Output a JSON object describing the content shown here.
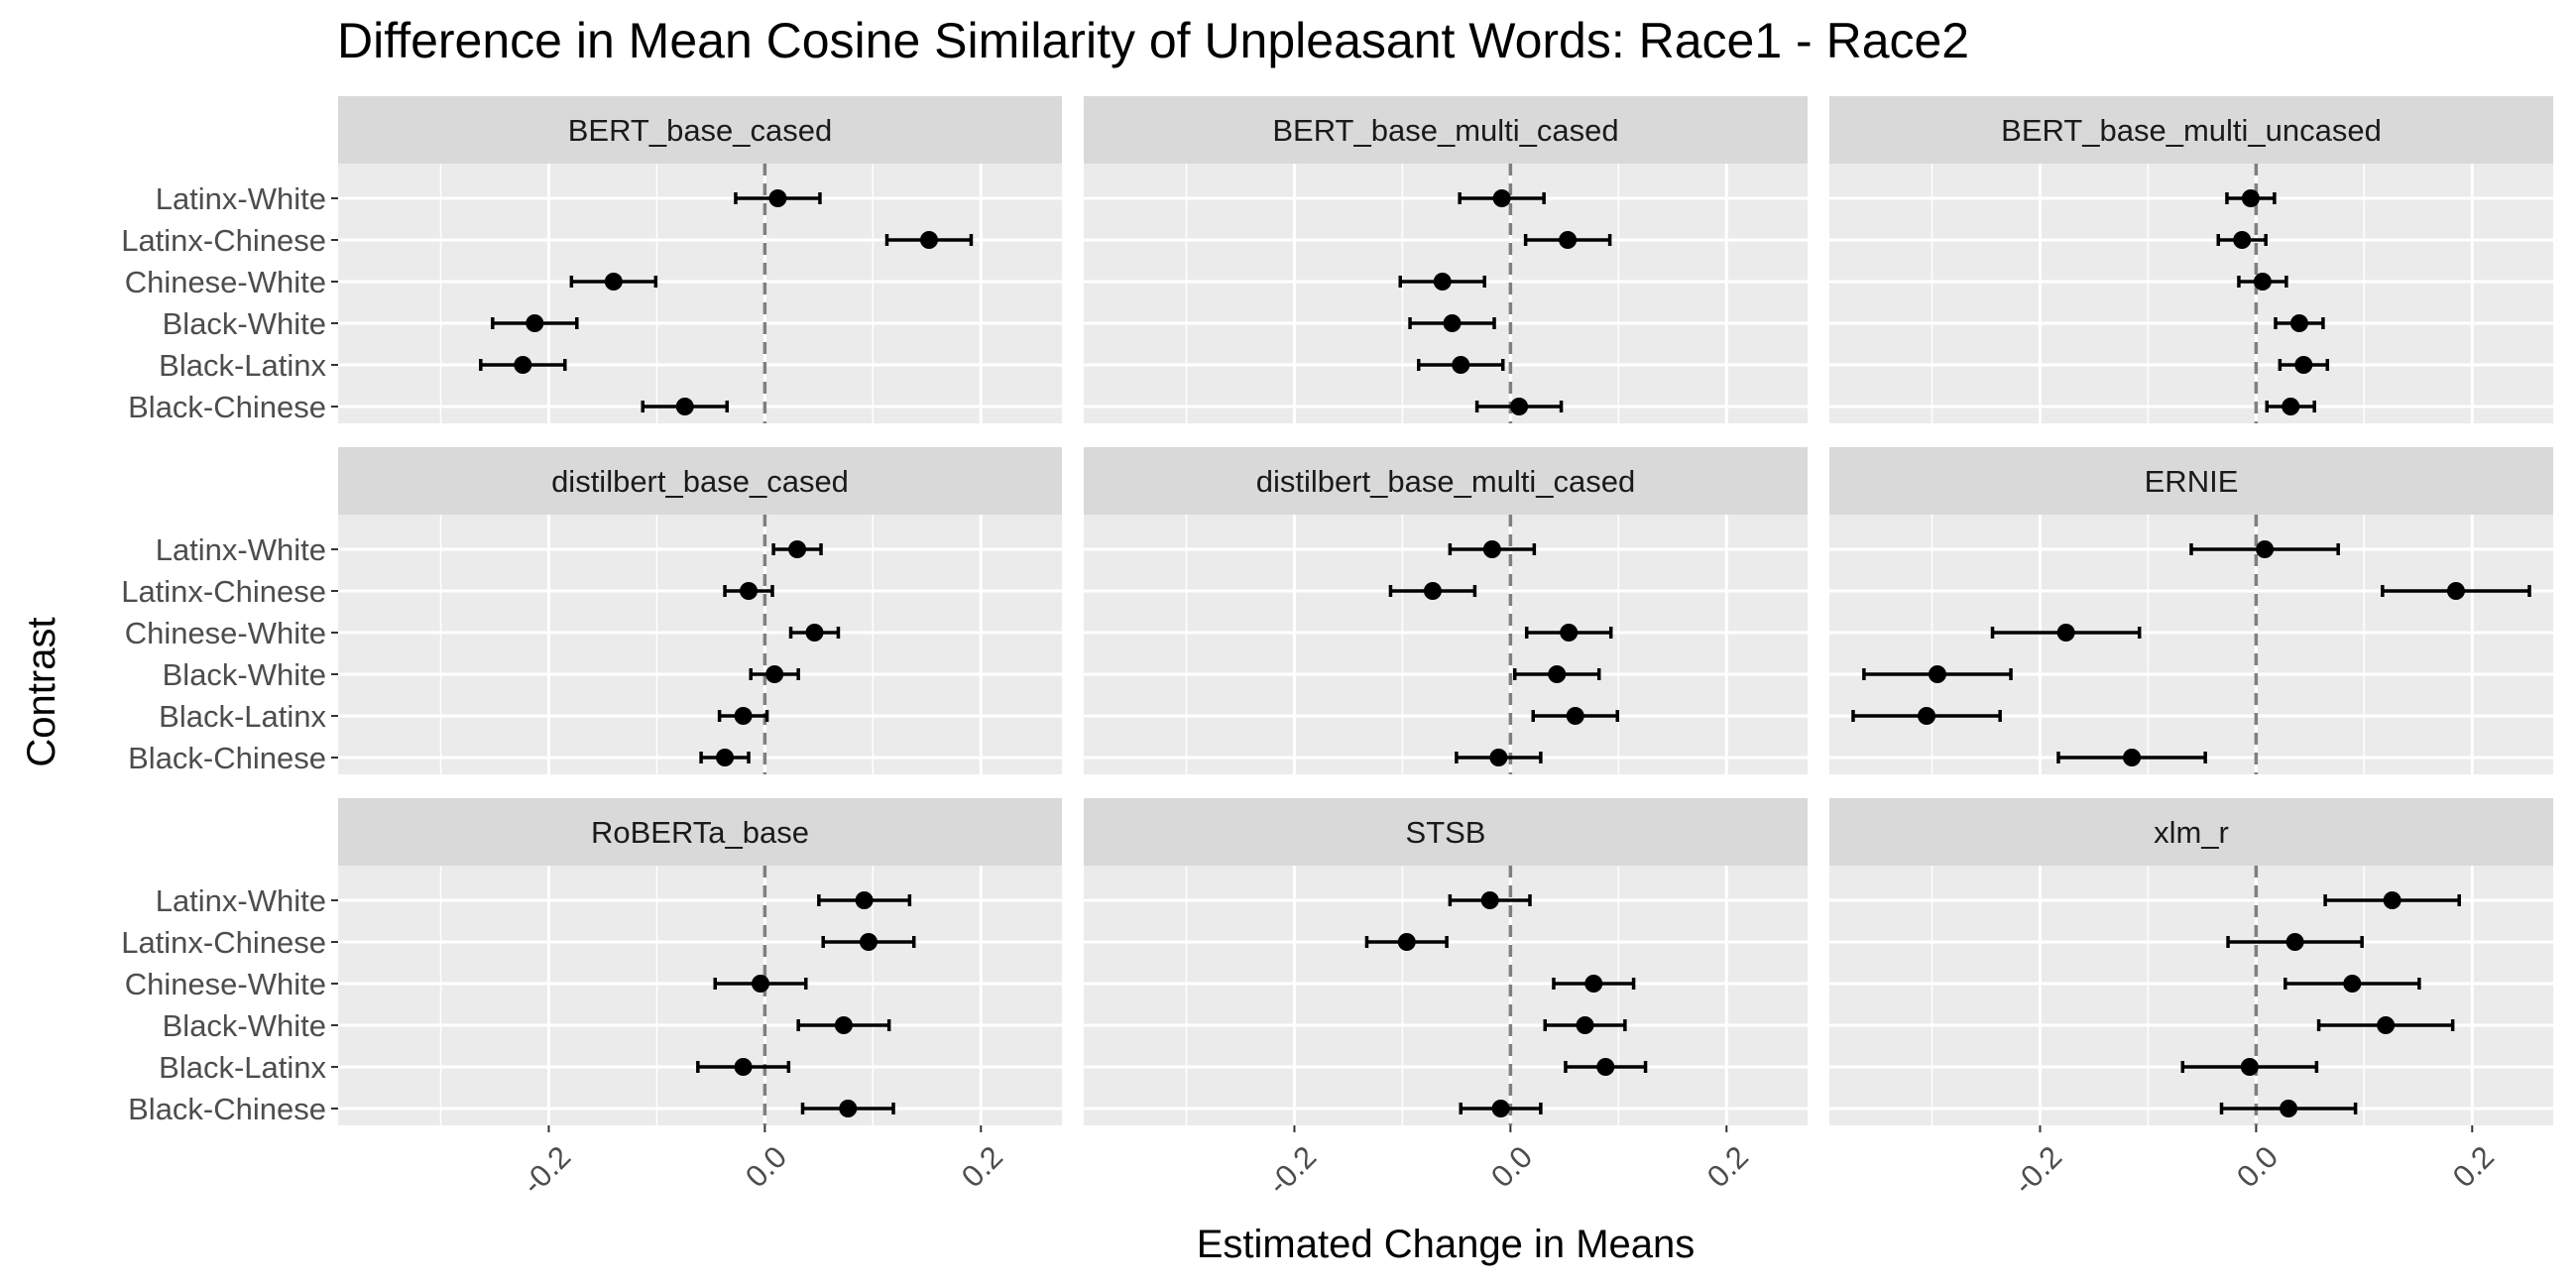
{
  "chart_data": {
    "type": "scatter",
    "title": "Difference in Mean Cosine Similarity of Unpleasant Words: Race1 - Race2",
    "xlabel": "Estimated Change in Means",
    "ylabel": "Contrast",
    "xlim": [
      -0.395,
      0.275
    ],
    "xticks": [
      -0.2,
      0.0,
      0.2
    ],
    "xtick_labels": [
      "-0.2",
      "0.0",
      "0.2"
    ],
    "reference_line": 0.0,
    "grid": true,
    "categories": [
      "Latinx-White",
      "Latinx-Chinese",
      "Chinese-White",
      "Black-White",
      "Black-Latinx",
      "Black-Chinese"
    ],
    "panels": [
      {
        "name": "BERT_base_cased",
        "points": [
          {
            "contrast": "Latinx-White",
            "estimate": 0.012,
            "lower": -0.027,
            "upper": 0.051
          },
          {
            "contrast": "Latinx-Chinese",
            "estimate": 0.152,
            "lower": 0.113,
            "upper": 0.191
          },
          {
            "contrast": "Chinese-White",
            "estimate": -0.14,
            "lower": -0.179,
            "upper": -0.101
          },
          {
            "contrast": "Black-White",
            "estimate": -0.213,
            "lower": -0.252,
            "upper": -0.174
          },
          {
            "contrast": "Black-Latinx",
            "estimate": -0.224,
            "lower": -0.263,
            "upper": -0.185
          },
          {
            "contrast": "Black-Chinese",
            "estimate": -0.074,
            "lower": -0.113,
            "upper": -0.035
          }
        ]
      },
      {
        "name": "BERT_base_multi_cased",
        "points": [
          {
            "contrast": "Latinx-White",
            "estimate": -0.008,
            "lower": -0.047,
            "upper": 0.031
          },
          {
            "contrast": "Latinx-Chinese",
            "estimate": 0.053,
            "lower": 0.014,
            "upper": 0.092
          },
          {
            "contrast": "Chinese-White",
            "estimate": -0.063,
            "lower": -0.102,
            "upper": -0.024
          },
          {
            "contrast": "Black-White",
            "estimate": -0.054,
            "lower": -0.093,
            "upper": -0.015
          },
          {
            "contrast": "Black-Latinx",
            "estimate": -0.046,
            "lower": -0.085,
            "upper": -0.007
          },
          {
            "contrast": "Black-Chinese",
            "estimate": 0.008,
            "lower": -0.031,
            "upper": 0.047
          }
        ]
      },
      {
        "name": "BERT_base_multi_uncased",
        "points": [
          {
            "contrast": "Latinx-White",
            "estimate": -0.005,
            "lower": -0.027,
            "upper": 0.017
          },
          {
            "contrast": "Latinx-Chinese",
            "estimate": -0.013,
            "lower": -0.035,
            "upper": 0.009
          },
          {
            "contrast": "Chinese-White",
            "estimate": 0.006,
            "lower": -0.016,
            "upper": 0.028
          },
          {
            "contrast": "Black-White",
            "estimate": 0.04,
            "lower": 0.018,
            "upper": 0.062
          },
          {
            "contrast": "Black-Latinx",
            "estimate": 0.044,
            "lower": 0.022,
            "upper": 0.066
          },
          {
            "contrast": "Black-Chinese",
            "estimate": 0.032,
            "lower": 0.01,
            "upper": 0.054
          }
        ]
      },
      {
        "name": "distilbert_base_cased",
        "points": [
          {
            "contrast": "Latinx-White",
            "estimate": 0.03,
            "lower": 0.008,
            "upper": 0.052
          },
          {
            "contrast": "Latinx-Chinese",
            "estimate": -0.015,
            "lower": -0.037,
            "upper": 0.007
          },
          {
            "contrast": "Chinese-White",
            "estimate": 0.046,
            "lower": 0.024,
            "upper": 0.068
          },
          {
            "contrast": "Black-White",
            "estimate": 0.009,
            "lower": -0.013,
            "upper": 0.031
          },
          {
            "contrast": "Black-Latinx",
            "estimate": -0.02,
            "lower": -0.042,
            "upper": 0.002
          },
          {
            "contrast": "Black-Chinese",
            "estimate": -0.037,
            "lower": -0.059,
            "upper": -0.015
          }
        ]
      },
      {
        "name": "distilbert_base_multi_cased",
        "points": [
          {
            "contrast": "Latinx-White",
            "estimate": -0.017,
            "lower": -0.056,
            "upper": 0.022
          },
          {
            "contrast": "Latinx-Chinese",
            "estimate": -0.072,
            "lower": -0.111,
            "upper": -0.033
          },
          {
            "contrast": "Chinese-White",
            "estimate": 0.054,
            "lower": 0.015,
            "upper": 0.093
          },
          {
            "contrast": "Black-White",
            "estimate": 0.043,
            "lower": 0.004,
            "upper": 0.082
          },
          {
            "contrast": "Black-Latinx",
            "estimate": 0.06,
            "lower": 0.021,
            "upper": 0.099
          },
          {
            "contrast": "Black-Chinese",
            "estimate": -0.011,
            "lower": -0.05,
            "upper": 0.028
          }
        ]
      },
      {
        "name": "ERNIE",
        "points": [
          {
            "contrast": "Latinx-White",
            "estimate": 0.008,
            "lower": -0.06,
            "upper": 0.076
          },
          {
            "contrast": "Latinx-Chinese",
            "estimate": 0.185,
            "lower": 0.117,
            "upper": 0.253
          },
          {
            "contrast": "Chinese-White",
            "estimate": -0.176,
            "lower": -0.244,
            "upper": -0.108
          },
          {
            "contrast": "Black-White",
            "estimate": -0.295,
            "lower": -0.363,
            "upper": -0.227
          },
          {
            "contrast": "Black-Latinx",
            "estimate": -0.305,
            "lower": -0.373,
            "upper": -0.237
          },
          {
            "contrast": "Black-Chinese",
            "estimate": -0.115,
            "lower": -0.183,
            "upper": -0.047
          }
        ]
      },
      {
        "name": "RoBERTa_base",
        "points": [
          {
            "contrast": "Latinx-White",
            "estimate": 0.092,
            "lower": 0.05,
            "upper": 0.134
          },
          {
            "contrast": "Latinx-Chinese",
            "estimate": 0.096,
            "lower": 0.054,
            "upper": 0.138
          },
          {
            "contrast": "Chinese-White",
            "estimate": -0.004,
            "lower": -0.046,
            "upper": 0.038
          },
          {
            "contrast": "Black-White",
            "estimate": 0.073,
            "lower": 0.031,
            "upper": 0.115
          },
          {
            "contrast": "Black-Latinx",
            "estimate": -0.02,
            "lower": -0.062,
            "upper": 0.022
          },
          {
            "contrast": "Black-Chinese",
            "estimate": 0.077,
            "lower": 0.035,
            "upper": 0.119
          }
        ]
      },
      {
        "name": "STSB",
        "points": [
          {
            "contrast": "Latinx-White",
            "estimate": -0.019,
            "lower": -0.056,
            "upper": 0.018
          },
          {
            "contrast": "Latinx-Chinese",
            "estimate": -0.096,
            "lower": -0.133,
            "upper": -0.059
          },
          {
            "contrast": "Chinese-White",
            "estimate": 0.077,
            "lower": 0.04,
            "upper": 0.114
          },
          {
            "contrast": "Black-White",
            "estimate": 0.069,
            "lower": 0.032,
            "upper": 0.106
          },
          {
            "contrast": "Black-Latinx",
            "estimate": 0.088,
            "lower": 0.051,
            "upper": 0.125
          },
          {
            "contrast": "Black-Chinese",
            "estimate": -0.009,
            "lower": -0.046,
            "upper": 0.028
          }
        ]
      },
      {
        "name": "xlm_r",
        "points": [
          {
            "contrast": "Latinx-White",
            "estimate": 0.126,
            "lower": 0.064,
            "upper": 0.188
          },
          {
            "contrast": "Latinx-Chinese",
            "estimate": 0.036,
            "lower": -0.026,
            "upper": 0.098
          },
          {
            "contrast": "Chinese-White",
            "estimate": 0.089,
            "lower": 0.027,
            "upper": 0.151
          },
          {
            "contrast": "Black-White",
            "estimate": 0.12,
            "lower": 0.058,
            "upper": 0.182
          },
          {
            "contrast": "Black-Latinx",
            "estimate": -0.006,
            "lower": -0.068,
            "upper": 0.056
          },
          {
            "contrast": "Black-Chinese",
            "estimate": 0.03,
            "lower": -0.032,
            "upper": 0.092
          }
        ]
      }
    ]
  },
  "colors": {
    "panel_background": "#ebebeb",
    "strip_background": "#d9d9d9",
    "grid_major": "#ffffff",
    "point": "#000000",
    "reference_line": "#7f7f7f",
    "tick_text": "#4d4d4d"
  }
}
